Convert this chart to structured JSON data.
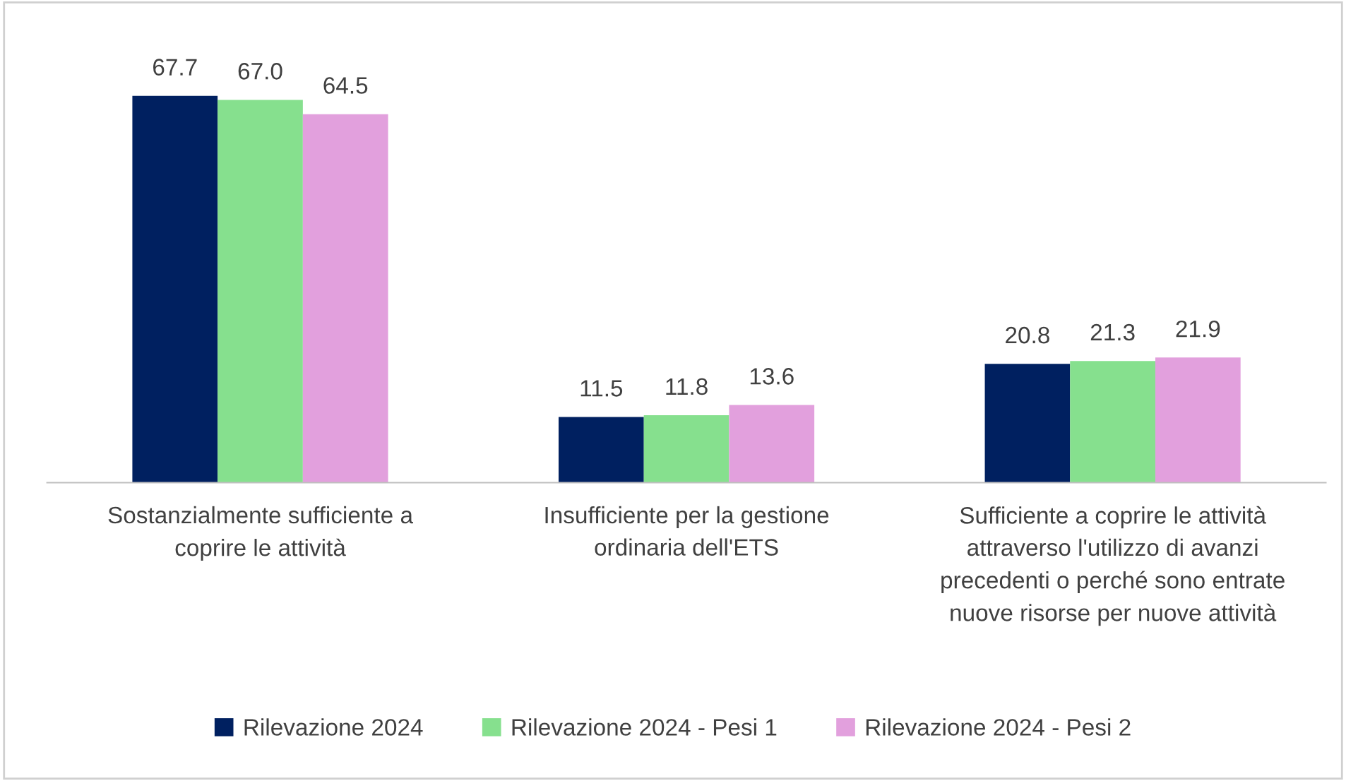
{
  "chart_data": {
    "type": "bar",
    "categories": [
      "Sostanzialmente sufficiente a\ncoprire le attività",
      "Insufficiente per la gestione\nordinaria dell'ETS",
      "Sufficiente a coprire le attività\nattraverso l'utilizzo di avanzi\nprecedenti o perché sono entrate\nnuove risorse per nuove attività"
    ],
    "series": [
      {
        "name": "Rilevazione 2024",
        "color": "#002060",
        "values": [
          67.7,
          11.5,
          20.8
        ],
        "value_labels": [
          "67.7",
          "11.5",
          "20.8"
        ]
      },
      {
        "name": "Rilevazione 2024 - Pesi 1",
        "color": "#86e08e",
        "values": [
          67.0,
          11.8,
          21.3
        ],
        "value_labels": [
          "67.0",
          "11.8",
          "21.3"
        ]
      },
      {
        "name": "Rilevazione 2024 - Pesi 2",
        "color": "#e2a0dd",
        "values": [
          64.5,
          13.6,
          21.9
        ],
        "value_labels": [
          "64.5",
          "13.6",
          "21.9"
        ]
      }
    ],
    "legend": "bottom",
    "tick_labels": "x"
  }
}
